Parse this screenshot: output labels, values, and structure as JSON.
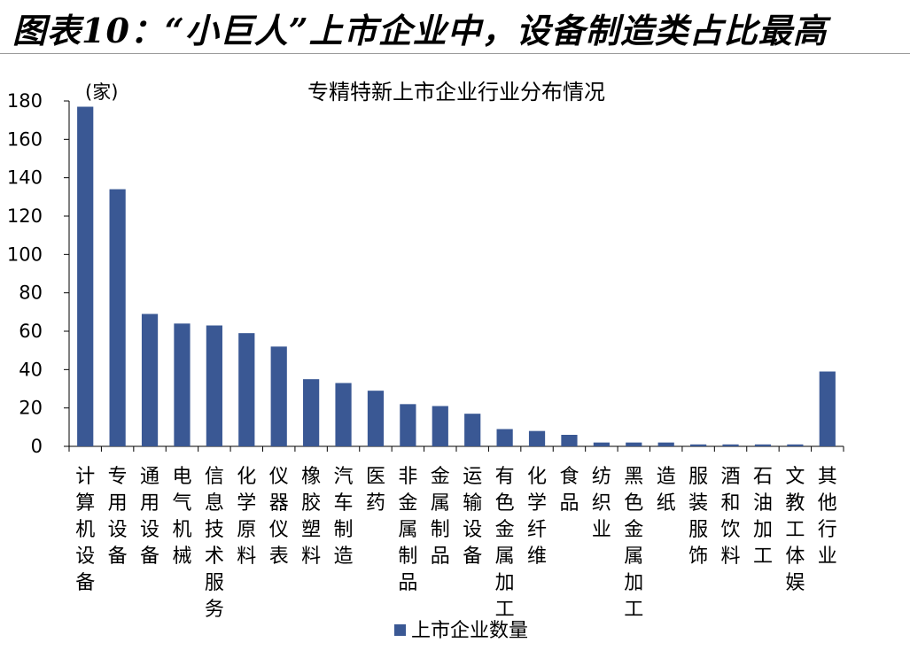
{
  "figure": {
    "caption": "图表10：“小巨人”上市企业中，设备制造类占比最高"
  },
  "chart_data": {
    "type": "bar",
    "title": "专精特新上市企业行业分布情况",
    "unit": "(家)",
    "xlabel": "",
    "ylabel": "",
    "ylim": [
      0,
      180
    ],
    "yticks": [
      0,
      20,
      40,
      60,
      80,
      100,
      120,
      140,
      160,
      180
    ],
    "grid": false,
    "legend_position": "bottom-center",
    "categories": [
      "计算机设备",
      "专用设备",
      "通用设备",
      "电气机械",
      "信息技术服务",
      "化学原料",
      "仪器仪表",
      "橡胶塑料",
      "汽车制造",
      "医药",
      "非金属制品",
      "金属制品",
      "运输设备",
      "有色金属加工",
      "化学纤维",
      "食品",
      "纺织业",
      "黑色金属加工",
      "造纸",
      "服装服饰",
      "酒和饮料",
      "石油加工",
      "文教工体娱",
      "其他行业"
    ],
    "series": [
      {
        "name": "上市企业数量",
        "color": "#3A5894",
        "values": [
          177,
          134,
          69,
          64,
          63,
          59,
          52,
          35,
          33,
          29,
          22,
          21,
          17,
          9,
          8,
          6,
          2,
          2,
          2,
          1,
          1,
          1,
          1,
          39
        ]
      }
    ]
  }
}
